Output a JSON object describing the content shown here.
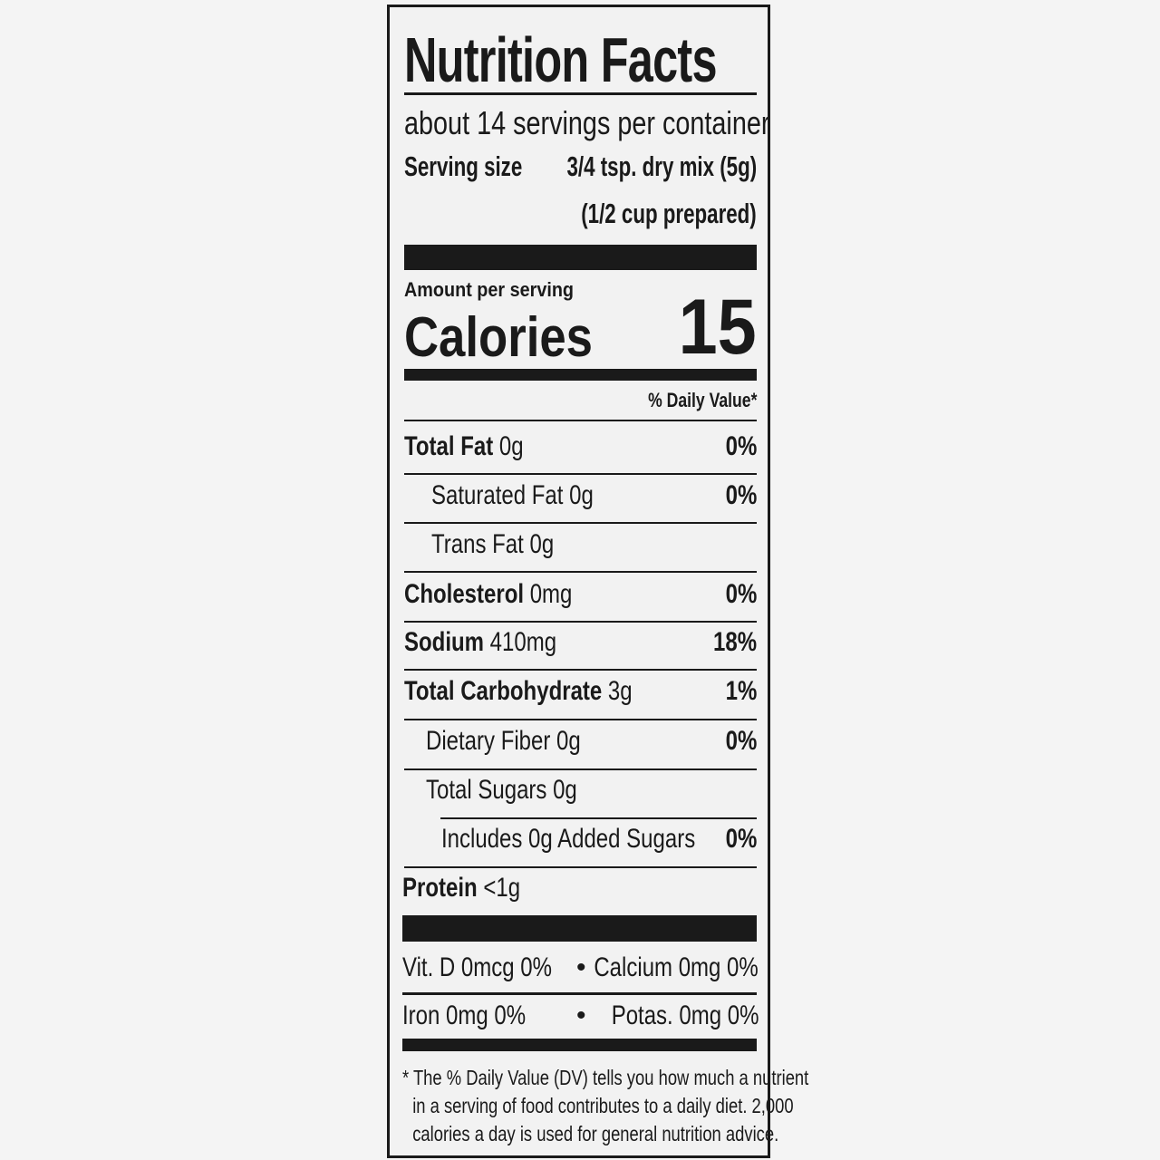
{
  "title": "Nutrition Facts",
  "servings_per_container": "about 14 servings per container",
  "serving_size": {
    "label": "Serving size",
    "value": "3/4 tsp. dry mix (5g)",
    "prepared": "(1/2 cup prepared)"
  },
  "amount_per_serving": "Amount per serving",
  "calories": {
    "label": "Calories",
    "value": "15"
  },
  "daily_value_header": "% Daily Value*",
  "nutrients": [
    {
      "name": "Total Fat",
      "amount": "0g",
      "dv": "0%"
    },
    {
      "name": "Saturated Fat",
      "amount": "0g",
      "dv": "0%"
    },
    {
      "name": "Trans Fat",
      "amount": "0g",
      "dv": ""
    },
    {
      "name": "Cholesterol",
      "amount": "0mg",
      "dv": "0%"
    },
    {
      "name": "Sodium",
      "amount": "410mg",
      "dv": "18%"
    },
    {
      "name": "Total Carbohydrate",
      "amount": "3g",
      "dv": "1%"
    },
    {
      "name": "Dietary Fiber",
      "amount": "0g",
      "dv": "0%"
    },
    {
      "name": "Total Sugars",
      "amount": "0g",
      "dv": ""
    },
    {
      "name": "Includes 0g Added Sugars",
      "amount": "",
      "dv": "0%"
    },
    {
      "name": "Protein",
      "amount": "<1g",
      "dv": ""
    }
  ],
  "vitamins": [
    {
      "left": "Vit. D 0mcg 0%",
      "bullet": "•",
      "right": "Calcium 0mg 0%"
    },
    {
      "left": "Iron 0mg 0%",
      "bullet": "•",
      "right": "Potas. 0mg 0%"
    }
  ],
  "footnote": [
    "* The % Daily Value (DV) tells you how much a nutrient",
    "in a serving of food contributes to a daily diet. 2,000",
    "calories a day is used for general nutrition advice."
  ]
}
